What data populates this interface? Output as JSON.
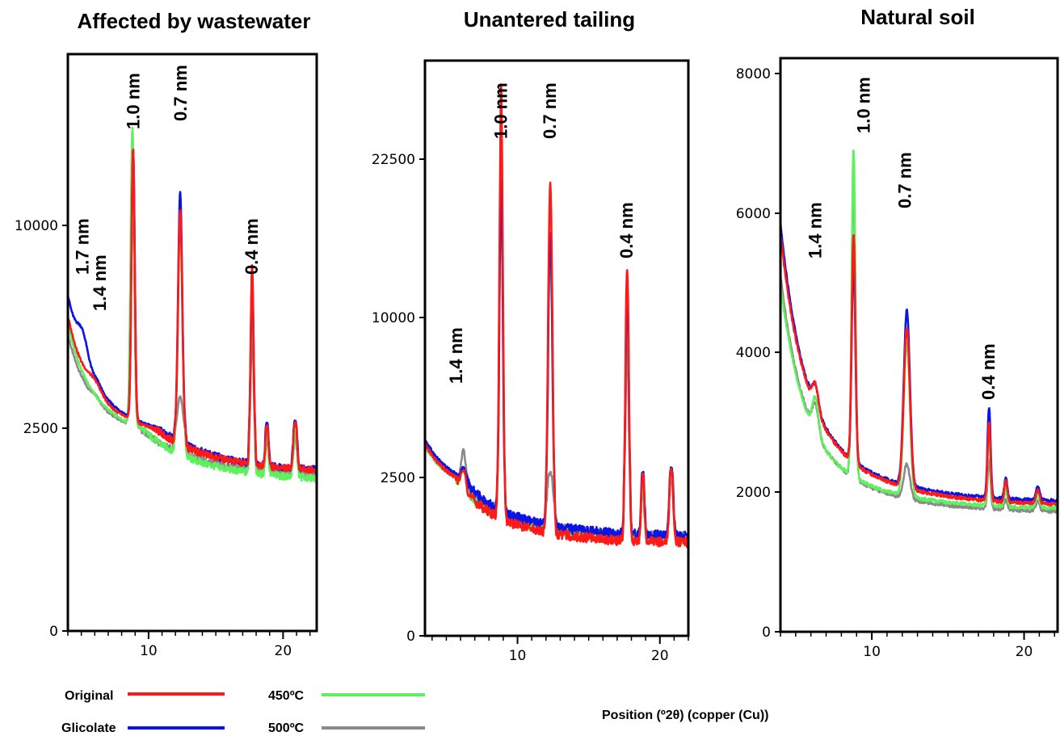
{
  "chart_data": {
    "type": "line",
    "xlabel": "Position  (º2θ) (copper (Cu))",
    "series_legend": [
      {
        "name": "Original",
        "color": "#ff1a1a"
      },
      {
        "name": "Glicolate",
        "color": "#0a14e6"
      },
      {
        "name": "450ºC",
        "color": "#5ef05e"
      },
      {
        "name": "500ºC",
        "color": "#8a8a8a"
      }
    ],
    "panels": [
      {
        "title": "Affected by wastewater",
        "xlim": [
          4,
          22.5
        ],
        "x_ticks": [
          10,
          20
        ],
        "y_ticks": [
          {
            "value": 0,
            "label": "0"
          },
          {
            "value": 2500,
            "label": "2500"
          },
          {
            "value": 10000,
            "label": "10000"
          }
        ],
        "peak_labels": [
          {
            "text": "1.7 nm",
            "x": 5.1
          },
          {
            "text": "1.4 nm",
            "x": 6.4
          },
          {
            "text": "1.0 nm",
            "x": 8.9
          },
          {
            "text": "0.7 nm",
            "x": 12.4
          },
          {
            "text": "0.4 nm",
            "x": 17.7
          }
        ],
        "baselines": {
          "Original": [
            6500,
            5600,
            3850,
            1950
          ],
          "Glicolate": [
            7600,
            5900,
            3950,
            1950
          ],
          "450ºC": [
            6300,
            5250,
            3850,
            1850
          ],
          "500ºC": [
            5900,
            4950,
            3300,
            1900
          ]
        },
        "peaks": {
          "Original": [
            {
              "x": 6.0,
              "h": 350,
              "w": 0.5
            },
            {
              "x": 8.85,
              "h": 10100,
              "w": 0.12
            },
            {
              "x": 12.35,
              "h": 8300,
              "w": 0.15
            },
            {
              "x": 17.7,
              "h": 6450,
              "w": 0.1
            },
            {
              "x": 18.8,
              "h": 600,
              "w": 0.1
            },
            {
              "x": 20.9,
              "h": 700,
              "w": 0.12
            }
          ],
          "Glicolate": [
            {
              "x": 5.1,
              "h": 900,
              "w": 0.4
            },
            {
              "x": 6.2,
              "h": 200,
              "w": 0.3
            },
            {
              "x": 8.85,
              "h": 10000,
              "w": 0.12
            },
            {
              "x": 12.35,
              "h": 8900,
              "w": 0.15
            },
            {
              "x": 17.7,
              "h": 6200,
              "w": 0.1
            },
            {
              "x": 18.8,
              "h": 700,
              "w": 0.1
            },
            {
              "x": 20.9,
              "h": 800,
              "w": 0.12
            }
          ],
          "450ºC": [
            {
              "x": 8.8,
              "h": 11000,
              "w": 0.13
            },
            {
              "x": 12.35,
              "h": 8000,
              "w": 0.15
            },
            {
              "x": 17.7,
              "h": 5800,
              "w": 0.1
            },
            {
              "x": 18.8,
              "h": 550,
              "w": 0.1
            },
            {
              "x": 20.9,
              "h": 600,
              "w": 0.12
            }
          ],
          "500ºC": [
            {
              "x": 6.1,
              "h": 200,
              "w": 0.3
            },
            {
              "x": 8.8,
              "h": 10200,
              "w": 0.13
            },
            {
              "x": 12.35,
              "h": 1500,
              "w": 0.2
            },
            {
              "x": 17.7,
              "h": 4200,
              "w": 0.1
            },
            {
              "x": 18.8,
              "h": 400,
              "w": 0.1
            },
            {
              "x": 20.9,
              "h": 500,
              "w": 0.12
            }
          ]
        }
      },
      {
        "title": "Unantered tailing",
        "xlim": [
          3.5,
          22
        ],
        "x_ticks": [
          10,
          20
        ],
        "y_ticks": [
          {
            "value": 0,
            "label": "0"
          },
          {
            "value": 2500,
            "label": "2500"
          },
          {
            "value": 10000,
            "label": "10000"
          },
          {
            "value": 22500,
            "label": "22500"
          }
        ],
        "peak_labels": [
          {
            "text": "1.4 nm",
            "x": 5.7
          },
          {
            "text": "1.0 nm",
            "x": 8.85
          },
          {
            "text": "0.7 nm",
            "x": 12.3
          },
          {
            "text": "0.4 nm",
            "x": 17.7
          }
        ],
        "baselines": {
          "Original": [
            4000,
            3500,
            2450,
            1450
          ],
          "Glicolate": [
            4200,
            3700,
            2550,
            1550
          ],
          "450ºC": [
            4000,
            3400,
            2400,
            1500
          ],
          "500ºC": [
            4000,
            3400,
            2200,
            1550
          ]
        },
        "peaks": {
          "Original": [
            {
              "x": 6.2,
              "h": 500,
              "w": 0.15
            },
            {
              "x": 8.85,
              "h": 25500,
              "w": 0.1
            },
            {
              "x": 12.3,
              "h": 19000,
              "w": 0.12
            },
            {
              "x": 17.7,
              "h": 12300,
              "w": 0.1
            },
            {
              "x": 18.8,
              "h": 1200,
              "w": 0.1
            },
            {
              "x": 20.8,
              "h": 1400,
              "w": 0.12
            }
          ],
          "Glicolate": [
            {
              "x": 6.2,
              "h": 500,
              "w": 0.15
            },
            {
              "x": 8.85,
              "h": 19000,
              "w": 0.1
            },
            {
              "x": 12.3,
              "h": 15000,
              "w": 0.12
            },
            {
              "x": 17.7,
              "h": 10500,
              "w": 0.1
            },
            {
              "x": 18.8,
              "h": 1200,
              "w": 0.1
            },
            {
              "x": 20.8,
              "h": 1400,
              "w": 0.12
            }
          ],
          "450ºC": [
            {
              "x": 6.2,
              "h": 500,
              "w": 0.15
            },
            {
              "x": 8.85,
              "h": 18000,
              "w": 0.1
            },
            {
              "x": 12.3,
              "h": 14000,
              "w": 0.12
            },
            {
              "x": 17.7,
              "h": 10000,
              "w": 0.1
            },
            {
              "x": 18.8,
              "h": 1000,
              "w": 0.1
            },
            {
              "x": 20.8,
              "h": 1200,
              "w": 0.12
            }
          ],
          "500ºC": [
            {
              "x": 6.2,
              "h": 1400,
              "w": 0.15
            },
            {
              "x": 8.85,
              "h": 18500,
              "w": 0.1
            },
            {
              "x": 12.3,
              "h": 1000,
              "w": 0.2
            },
            {
              "x": 17.7,
              "h": 7500,
              "w": 0.1
            },
            {
              "x": 18.8,
              "h": 800,
              "w": 0.1
            },
            {
              "x": 20.8,
              "h": 1000,
              "w": 0.12
            }
          ]
        }
      },
      {
        "title": "Natural soil",
        "xlim": [
          4,
          22.2
        ],
        "x_ticks": [
          10,
          20
        ],
        "y_ticks": [
          {
            "value": 0,
            "label": "0"
          },
          {
            "value": 2000,
            "label": "2000"
          },
          {
            "value": 4000,
            "label": "4000"
          },
          {
            "value": 6000,
            "label": "6000"
          },
          {
            "value": 8000,
            "label": "8000"
          }
        ],
        "peak_labels": [
          {
            "text": "1.4 nm",
            "x": 6.3
          },
          {
            "text": "1.0 nm",
            "x": 9.5
          },
          {
            "text": "0.7 nm",
            "x": 12.2
          },
          {
            "text": "0.4 nm",
            "x": 17.7
          }
        ],
        "baselines": {
          "Original": [
            6000,
            4450,
            3300,
            1800
          ],
          "Glicolate": [
            6400,
            4350,
            3150,
            1850
          ],
          "450ºC": [
            5500,
            3700,
            3050,
            1750
          ],
          "500ºC": [
            5600,
            3800,
            2600,
            1700
          ]
        },
        "peaks": {
          "Original": [
            {
              "x": 6.3,
              "h": 350,
              "w": 0.2
            },
            {
              "x": 8.8,
              "h": 3300,
              "w": 0.12
            },
            {
              "x": 12.3,
              "h": 2300,
              "w": 0.2
            },
            {
              "x": 17.7,
              "h": 1100,
              "w": 0.1
            },
            {
              "x": 18.8,
              "h": 300,
              "w": 0.1
            },
            {
              "x": 20.9,
              "h": 200,
              "w": 0.12
            }
          ],
          "Glicolate": [
            {
              "x": 6.3,
              "h": 300,
              "w": 0.2
            },
            {
              "x": 8.8,
              "h": 2900,
              "w": 0.12
            },
            {
              "x": 12.3,
              "h": 2500,
              "w": 0.2
            },
            {
              "x": 17.7,
              "h": 1300,
              "w": 0.1
            },
            {
              "x": 18.8,
              "h": 300,
              "w": 0.1
            },
            {
              "x": 20.9,
              "h": 200,
              "w": 0.12
            }
          ],
          "450ºC": [
            {
              "x": 6.3,
              "h": 500,
              "w": 0.2
            },
            {
              "x": 8.8,
              "h": 4700,
              "w": 0.12
            },
            {
              "x": 12.3,
              "h": 2200,
              "w": 0.2
            },
            {
              "x": 17.7,
              "h": 1000,
              "w": 0.1
            },
            {
              "x": 18.8,
              "h": 250,
              "w": 0.1
            },
            {
              "x": 20.9,
              "h": 200,
              "w": 0.12
            }
          ],
          "500ºC": [
            {
              "x": 6.3,
              "h": 400,
              "w": 0.2
            },
            {
              "x": 8.8,
              "h": 4400,
              "w": 0.12
            },
            {
              "x": 12.3,
              "h": 500,
              "w": 0.2
            },
            {
              "x": 17.7,
              "h": 700,
              "w": 0.1
            },
            {
              "x": 18.8,
              "h": 150,
              "w": 0.1
            },
            {
              "x": 20.9,
              "h": 150,
              "w": 0.12
            }
          ]
        }
      }
    ]
  }
}
